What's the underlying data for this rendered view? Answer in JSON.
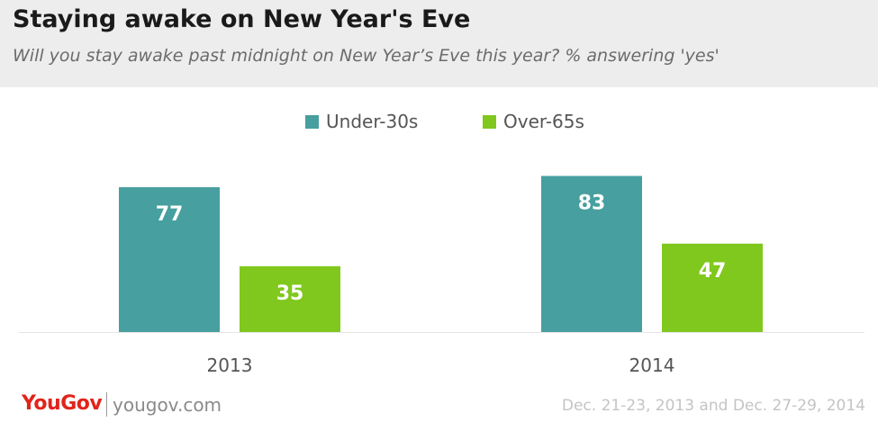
{
  "header": {
    "title": "Staying awake on New Year's Eve",
    "subtitle": "Will you stay awake past midnight on New Year’s Eve this year? % answering 'yes'"
  },
  "footer": {
    "logo_text": "YouGov",
    "url": "yougov.com",
    "date_note": "Dec. 21-23, 2013 and Dec. 27-29, 2014"
  },
  "colors": {
    "under30": "#479f9f",
    "over65": "#80c81e",
    "header_bg": "#ededed",
    "logo": "#e2231a"
  },
  "chart_data": {
    "type": "bar",
    "categories": [
      "2013",
      "2014"
    ],
    "series": [
      {
        "name": "Under-30s",
        "values": [
          77,
          83
        ],
        "color": "#479f9f"
      },
      {
        "name": "Over-65s",
        "values": [
          35,
          47
        ],
        "color": "#80c81e"
      }
    ],
    "ylim": [
      0,
      100
    ],
    "legend_position": "top-center",
    "grid": false,
    "data_labels": true
  }
}
